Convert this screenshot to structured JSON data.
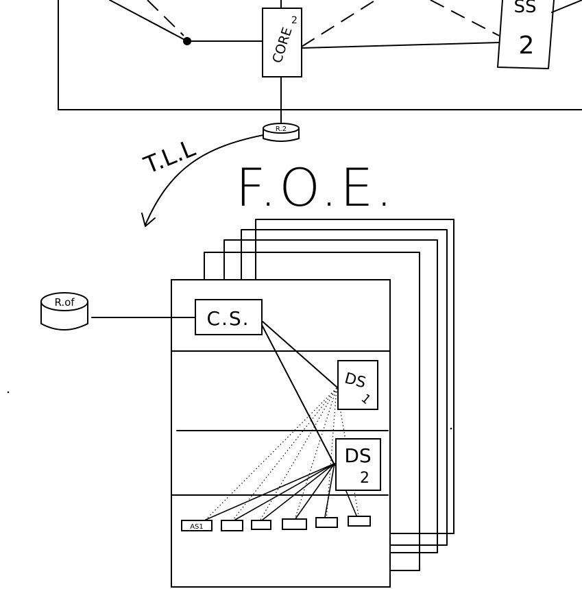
{
  "labels": {
    "core": "CORE",
    "core_sup": "2",
    "ss": "SS",
    "ss_num": "2",
    "r2": "R.2",
    "tll": "T.L.L",
    "foe": "F.O.E.",
    "rof": "R.of",
    "cs": "C.S.",
    "ds1": "DS",
    "ds1_num": "1",
    "ds2": "DS",
    "ds2_num": "2",
    "as1": "AS1"
  }
}
